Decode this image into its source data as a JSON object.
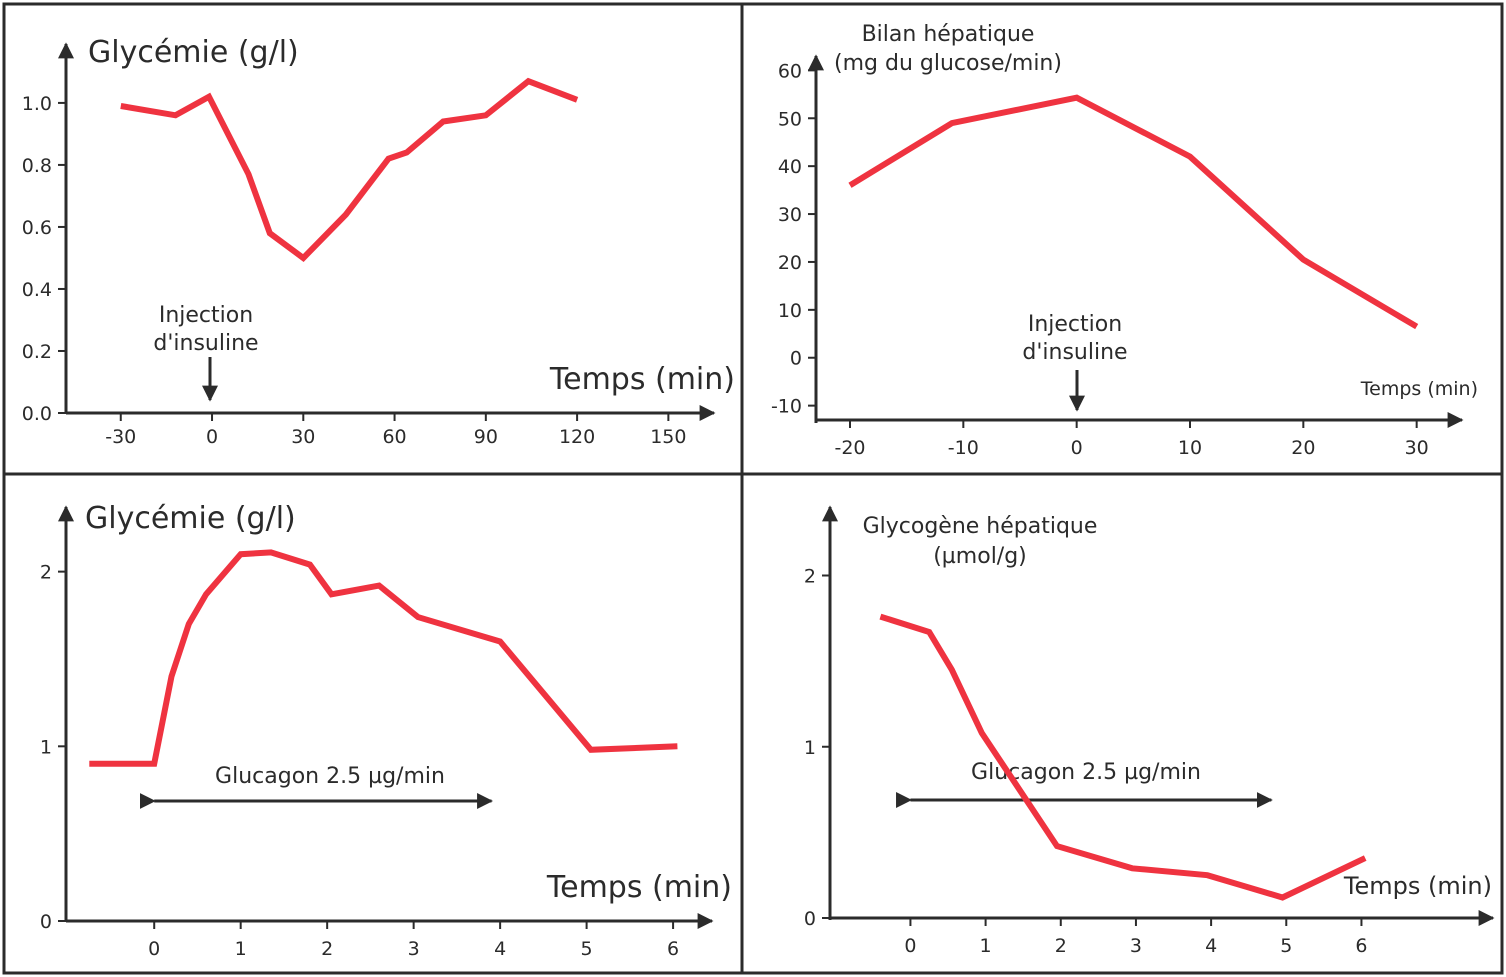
{
  "line_color": "#ef3340",
  "axis_color": "#2b2b2b",
  "chart_data": [
    {
      "type": "line",
      "ylabel": "Glycémie (g/l)",
      "xlabel": "Temps (min)",
      "x_ticks": [
        "-30",
        "0",
        "30",
        "60",
        "90",
        "120",
        "150"
      ],
      "x_tick_values": [
        -30,
        0,
        30,
        60,
        90,
        120,
        150
      ],
      "y_ticks": [
        "0.0",
        "0.2",
        "0.4",
        "0.6",
        "0.8",
        "1.0"
      ],
      "y_tick_values": [
        0,
        0.2,
        0.4,
        0.6,
        0.8,
        1.0
      ],
      "xlim": [
        -48,
        165
      ],
      "ylim": [
        0,
        1.19
      ],
      "x": [
        -30,
        -12,
        -1,
        12,
        19,
        30,
        44,
        58,
        64,
        76,
        90,
        104,
        120
      ],
      "y": [
        0.99,
        0.96,
        1.02,
        0.77,
        0.58,
        0.5,
        0.64,
        0.82,
        0.84,
        0.94,
        0.96,
        1.07,
        1.01
      ],
      "annotation": {
        "line1": "Injection",
        "line2": "d'insuline",
        "x": 0
      }
    },
    {
      "type": "line",
      "ylabel_line1": "Bilan hépatique",
      "ylabel_line2": "(mg du glucose/min)",
      "xlabel": "Temps (min)",
      "x_ticks": [
        "-20",
        "-10",
        "0",
        "10",
        "20",
        "30"
      ],
      "x_tick_values": [
        -20,
        -10,
        0,
        10,
        20,
        30
      ],
      "y_ticks": [
        "-10",
        "0",
        "10",
        "20",
        "30",
        "40",
        "50",
        "60"
      ],
      "y_tick_values": [
        -10,
        0,
        10,
        20,
        30,
        40,
        50,
        60
      ],
      "xlim": [
        -23,
        34
      ],
      "ylim": [
        -13,
        63
      ],
      "x": [
        -20,
        -11,
        0,
        10,
        20,
        30
      ],
      "y": [
        36,
        49,
        54.3,
        42,
        20.5,
        6.5
      ],
      "annotation": {
        "line1": "Injection",
        "line2": "d'insuline",
        "x": 0
      }
    },
    {
      "type": "line",
      "ylabel": "Glycémie (g/l)",
      "xlabel": "Temps (min)",
      "x_ticks": [
        "0",
        "1",
        "2",
        "3",
        "4",
        "5",
        "6"
      ],
      "x_tick_values": [
        0,
        1,
        2,
        3,
        4,
        5,
        6
      ],
      "y_ticks": [
        "0",
        "1",
        "2"
      ],
      "y_tick_values": [
        0,
        1,
        2
      ],
      "xlim": [
        -1.02,
        6.45
      ],
      "ylim": [
        0,
        2.37
      ],
      "x": [
        -0.75,
        0,
        0.2,
        0.4,
        0.6,
        1.0,
        1.35,
        1.8,
        2.05,
        2.6,
        3.05,
        4.0,
        5.05,
        6.05
      ],
      "y": [
        0.9,
        0.9,
        1.4,
        1.7,
        1.87,
        2.1,
        2.11,
        2.04,
        1.87,
        1.92,
        1.74,
        1.6,
        0.98,
        1.0
      ],
      "annotation": {
        "text": "Glucagon 2.5 µg/min",
        "x_start": 0,
        "x_end": 3.9
      }
    },
    {
      "type": "line",
      "ylabel_line1": "Glycogène hépatique",
      "ylabel_line2": "(µmol/g)",
      "xlabel": "Temps (min)",
      "x_ticks": [
        "0",
        "1",
        "2",
        "3",
        "4",
        "5",
        "6"
      ],
      "x_tick_values": [
        0,
        1,
        2,
        3,
        4,
        5,
        6
      ],
      "y_ticks": [
        "0",
        "1",
        "2"
      ],
      "y_tick_values": [
        0,
        1,
        2
      ],
      "xlim": [
        -1.07,
        7.75
      ],
      "ylim": [
        0,
        2.4
      ],
      "x": [
        -0.4,
        0.25,
        0.55,
        0.95,
        1.95,
        2.95,
        3.95,
        4.95,
        6.05
      ],
      "y": [
        1.76,
        1.67,
        1.45,
        1.08,
        0.42,
        0.29,
        0.25,
        0.12,
        0.35
      ],
      "annotation": {
        "text": "Glucagon 2.5 µg/min",
        "x_start": 0,
        "x_end": 4.8
      }
    }
  ]
}
